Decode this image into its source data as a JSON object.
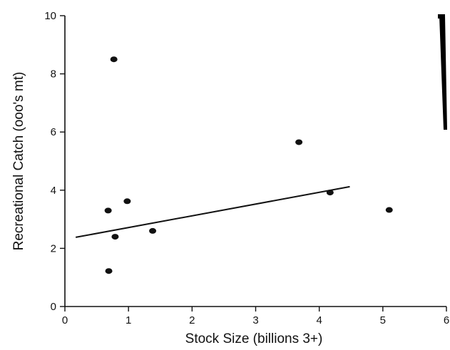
{
  "chart_data": {
    "type": "scatter",
    "title": "",
    "xlabel": "Stock Size (billions 3+)",
    "ylabel": "Recreational Catch (ooo's mt)",
    "xlim": [
      0,
      6
    ],
    "ylim": [
      0,
      10
    ],
    "x_ticks": [
      0,
      1,
      2,
      3,
      4,
      5,
      6
    ],
    "y_ticks": [
      0,
      2,
      4,
      6,
      8,
      10
    ],
    "grid": false,
    "legend": "none",
    "points": [
      {
        "x": 0.77,
        "y": 8.5
      },
      {
        "x": 3.68,
        "y": 5.65
      },
      {
        "x": 4.17,
        "y": 3.92
      },
      {
        "x": 5.1,
        "y": 3.32
      },
      {
        "x": 0.98,
        "y": 3.62
      },
      {
        "x": 0.68,
        "y": 3.3
      },
      {
        "x": 1.38,
        "y": 2.6
      },
      {
        "x": 0.79,
        "y": 2.4
      },
      {
        "x": 0.69,
        "y": 1.22
      }
    ],
    "trendline": {
      "x": [
        0.17,
        4.48
      ],
      "y": [
        2.38,
        4.12
      ]
    },
    "colors": {
      "marker": "#111111",
      "axis": "#111111"
    }
  }
}
